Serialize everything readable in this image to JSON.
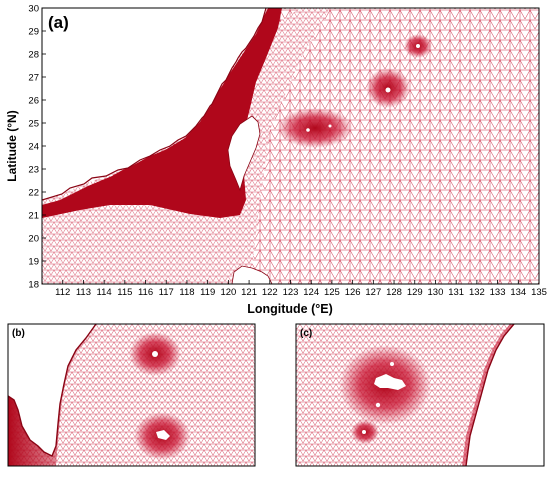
{
  "panels": [
    {
      "id": "a",
      "label": "(a)"
    },
    {
      "id": "b",
      "label": "(b)"
    },
    {
      "id": "c",
      "label": "(c)"
    }
  ],
  "main_map": {
    "x_axis": {
      "label": "Longitude (°E)",
      "ticks": [
        "112",
        "113",
        "114",
        "115",
        "116",
        "117",
        "118",
        "119",
        "120",
        "121",
        "122",
        "123",
        "124",
        "125",
        "126",
        "127",
        "128",
        "129",
        "130",
        "131",
        "132",
        "133",
        "134",
        "135"
      ]
    },
    "y_axis": {
      "label": "Latitude (°N)",
      "ticks": [
        "18",
        "19",
        "20",
        "21",
        "22",
        "23",
        "24",
        "25",
        "26",
        "27",
        "28",
        "29",
        "30"
      ]
    },
    "xlim": [
      111,
      135
    ],
    "ylim": [
      18,
      30
    ]
  },
  "colors": {
    "mesh_line": "#c8102e",
    "land": "#ffffff",
    "dense_mesh": "#b0071b"
  }
}
